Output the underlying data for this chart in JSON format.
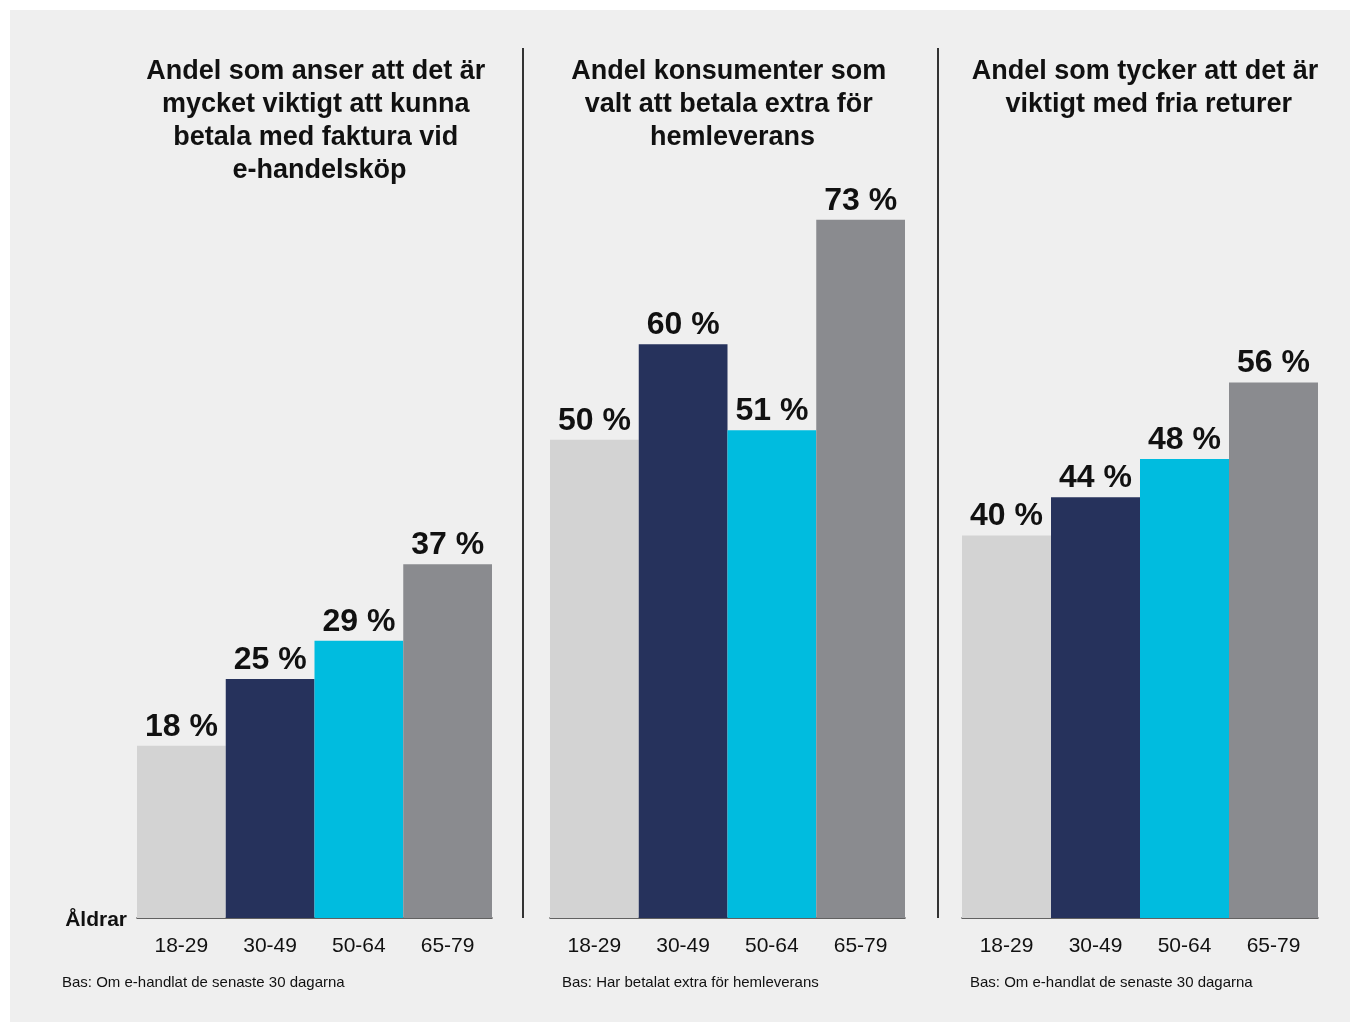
{
  "chart_data": [
    {
      "type": "bar",
      "title": "Andel som anser att det är mycket viktigt att kunna betala med faktura vid e-handelsköp",
      "xlabel": "Åldrar",
      "categories": [
        "18-29",
        "30-49",
        "50-64",
        "65-79"
      ],
      "values": [
        18,
        25,
        29,
        37
      ],
      "colors": [
        "#d3d3d3",
        "#26325c",
        "#00bcdf",
        "#8a8b8f"
      ],
      "value_labels": [
        "18 %",
        "25 %",
        "29 %",
        "37 %"
      ],
      "annotations": [
        "Bas: Om e-handlat de senaste 30 dagarna"
      ]
    },
    {
      "type": "bar",
      "title": "Andel konsumenter som valt att betala extra för hemleverans",
      "categories": [
        "18-29",
        "30-49",
        "50-64",
        "65-79"
      ],
      "values": [
        50,
        60,
        51,
        73
      ],
      "colors": [
        "#d3d3d3",
        "#26325c",
        "#00bcdf",
        "#8a8b8f"
      ],
      "value_labels": [
        "50 %",
        "60 %",
        "51 %",
        "73 %"
      ],
      "annotations": [
        "Bas: Har betalat extra för hemleverans"
      ]
    },
    {
      "type": "bar",
      "title": "Andel som tycker att det är viktigt med fria returer",
      "categories": [
        "18-29",
        "30-49",
        "50-64",
        "65-79"
      ],
      "values": [
        40,
        44,
        48,
        56
      ],
      "colors": [
        "#d3d3d3",
        "#26325c",
        "#00bcdf",
        "#8a8b8f"
      ],
      "value_labels": [
        "40 %",
        "44 %",
        "48 %",
        "56 %"
      ],
      "annotations": [
        "Bas: Om e-handlat de senaste 30 dagarna"
      ]
    }
  ]
}
